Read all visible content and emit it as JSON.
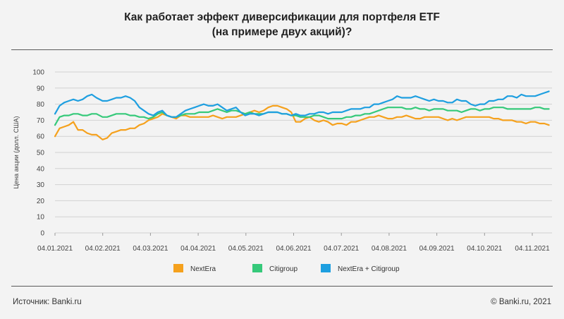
{
  "title_line1": "Как работает эффект диверсификации для портфеля ETF",
  "title_line2": "(на примере двух акций)?",
  "footer": {
    "source": "Источник: Banki.ru",
    "copyright": "© Banki.ru, 2021"
  },
  "colors": {
    "nextera": "#f5a11d",
    "citigroup": "#36c97a",
    "combined": "#1e9fe0",
    "grid": "#d2d2d2",
    "axis_text": "#444444"
  },
  "chart_data": {
    "type": "line",
    "title": "Как работает эффект диверсификации для портфеля ETF (на примере двух акций)?",
    "xlabel": "",
    "ylabel": "Цена акции (долл. США)",
    "ylim": [
      0,
      100
    ],
    "yticks": [
      0,
      10,
      20,
      30,
      40,
      50,
      60,
      70,
      80,
      90,
      100
    ],
    "xtick_labels": [
      "04.01.2021",
      "04.02.2021",
      "04.03.2021",
      "04.04.2021",
      "04.05.2021",
      "04.06.2021",
      "04.07.2021",
      "04.08.2021",
      "04.09.2021",
      "04.10.2021",
      "04.11.2021"
    ],
    "x_days": [
      0,
      3,
      6,
      9,
      12,
      15,
      18,
      21,
      24,
      27,
      31,
      34,
      37,
      40,
      43,
      46,
      49,
      52,
      55,
      58,
      61,
      64,
      67,
      70,
      73,
      76,
      79,
      82,
      85,
      88,
      91,
      94,
      97,
      100,
      103,
      106,
      109,
      112,
      115,
      118,
      121,
      124,
      127,
      130,
      133,
      136,
      139,
      142,
      145,
      148,
      151,
      154,
      157,
      160,
      163,
      166,
      169,
      172,
      175,
      178,
      181,
      184,
      187,
      190,
      193,
      196,
      199,
      202,
      205,
      208,
      211,
      214,
      217,
      220,
      223,
      226,
      229,
      232,
      235,
      238,
      241,
      244,
      247,
      250,
      253,
      256,
      259,
      262,
      265,
      268,
      271,
      274,
      277,
      280,
      283,
      286,
      289,
      292,
      295,
      298,
      301,
      304,
      307,
      310,
      313,
      316,
      319,
      322
    ],
    "x_range_days": [
      0,
      324
    ],
    "legend_position": "bottom",
    "grid": true,
    "series": [
      {
        "name": "NextEra",
        "color": "#f5a11d",
        "values": [
          60,
          65,
          66,
          67,
          69,
          64,
          64,
          62,
          61,
          61,
          58,
          59,
          62,
          63,
          64,
          64,
          65,
          65,
          67,
          68,
          70,
          71,
          72,
          74,
          73,
          72,
          71,
          73,
          73,
          72,
          72,
          72,
          72,
          72,
          73,
          72,
          71,
          72,
          72,
          72,
          73,
          74,
          75,
          76,
          75,
          76,
          78,
          79,
          79,
          78,
          77,
          75,
          69,
          69,
          71,
          72,
          70,
          69,
          70,
          69,
          67,
          68,
          68,
          67,
          69,
          69,
          70,
          71,
          72,
          72,
          73,
          72,
          71,
          71,
          72,
          72,
          73,
          72,
          71,
          71,
          72,
          72,
          72,
          72,
          71,
          70,
          71,
          70,
          71,
          72,
          72,
          72,
          72,
          72,
          72,
          71,
          71,
          70,
          70,
          70,
          69,
          69,
          68,
          69,
          69,
          68,
          68,
          67
        ]
      },
      {
        "name": "Citigroup",
        "color": "#36c97a",
        "values": [
          67,
          72,
          73,
          73,
          74,
          74,
          73,
          73,
          74,
          74,
          72,
          72,
          73,
          74,
          74,
          74,
          73,
          73,
          72,
          72,
          71,
          72,
          74,
          75,
          73,
          72,
          72,
          73,
          74,
          74,
          74,
          75,
          75,
          75,
          76,
          77,
          76,
          75,
          76,
          76,
          75,
          74,
          75,
          74,
          74,
          74,
          75,
          75,
          75,
          74,
          74,
          73,
          73,
          72,
          72,
          72,
          73,
          73,
          72,
          71,
          71,
          71,
          71,
          72,
          72,
          73,
          73,
          74,
          74,
          75,
          76,
          77,
          78,
          78,
          78,
          78,
          77,
          77,
          78,
          77,
          77,
          76,
          77,
          77,
          77,
          76,
          76,
          76,
          75,
          76,
          77,
          77,
          76,
          77,
          77,
          78,
          78,
          78,
          77,
          77,
          77,
          77,
          77,
          77,
          78,
          78,
          77,
          77
        ]
      },
      {
        "name": "NextEra + Citigroup",
        "color": "#1e9fe0",
        "values": [
          74,
          79,
          81,
          82,
          83,
          82,
          83,
          85,
          86,
          84,
          82,
          82,
          83,
          84,
          84,
          85,
          84,
          82,
          78,
          76,
          74,
          73,
          75,
          76,
          73,
          72,
          72,
          74,
          76,
          77,
          78,
          79,
          80,
          79,
          79,
          80,
          78,
          76,
          77,
          78,
          75,
          73,
          74,
          74,
          73,
          74,
          75,
          75,
          75,
          74,
          74,
          73,
          74,
          73,
          73,
          74,
          74,
          75,
          75,
          74,
          75,
          75,
          75,
          76,
          77,
          77,
          77,
          78,
          78,
          80,
          80,
          81,
          82,
          83,
          85,
          84,
          84,
          84,
          85,
          84,
          83,
          82,
          83,
          82,
          82,
          81,
          81,
          83,
          82,
          82,
          80,
          79,
          80,
          80,
          82,
          82,
          83,
          83,
          85,
          85,
          84,
          86,
          85,
          85,
          85,
          86,
          87,
          88
        ]
      }
    ]
  }
}
